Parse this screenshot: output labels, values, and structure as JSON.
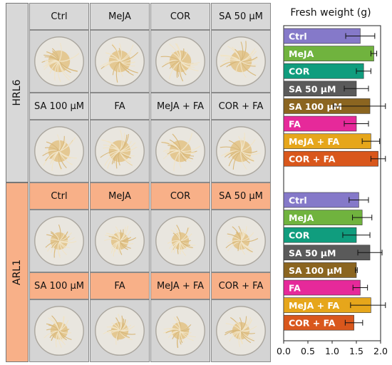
{
  "panels": [
    {
      "label": "HRL6",
      "row1": [
        "Ctrl",
        "MeJA",
        "COR",
        "SA 50 µM"
      ],
      "row2": [
        "SA 100 µM",
        "FA",
        "MeJA + FA",
        "COR + FA"
      ]
    },
    {
      "label": "ARL1",
      "row1": [
        "Ctrl",
        "MeJA",
        "COR",
        "SA 50 µM"
      ],
      "row2": [
        "SA 100 µM",
        "FA",
        "MeJA + FA",
        "COR + FA"
      ]
    }
  ],
  "colors": {
    "header_gray": "#d8d8d8",
    "header_orange": "#f8b088",
    "photo_bg": "#d4d4d4",
    "root_color": "#e3c48a",
    "bars": [
      "#8579c9",
      "#70b33e",
      "#109d7e",
      "#5a5a5a",
      "#8b6520",
      "#e6299a",
      "#e6a61b",
      "#d9571c"
    ]
  },
  "chart_data": {
    "type": "bar",
    "orientation": "horizontal",
    "title": "Fresh weight (g)",
    "xlim": [
      0,
      2.0
    ],
    "xticks": [
      "0.0",
      "0.5",
      "1.0",
      "1.5",
      "2.0"
    ],
    "categories": [
      "Ctrl",
      "MeJA",
      "COR",
      "SA 50 µM",
      "SA 100 µM",
      "FA",
      "MeJA + FA",
      "COR + FA"
    ],
    "groups": [
      {
        "name": "HRL6",
        "values": [
          1.58,
          1.86,
          1.65,
          1.5,
          1.78,
          1.5,
          1.8,
          1.95
        ],
        "errors": [
          0.3,
          0.06,
          0.15,
          0.25,
          0.75,
          0.25,
          0.18,
          0.15
        ]
      },
      {
        "name": "ARL1",
        "values": [
          1.55,
          1.62,
          1.5,
          1.78,
          1.5,
          1.58,
          1.8,
          1.45
        ],
        "errors": [
          0.2,
          0.2,
          0.28,
          0.25,
          0.02,
          0.15,
          0.42,
          0.18
        ]
      }
    ]
  }
}
